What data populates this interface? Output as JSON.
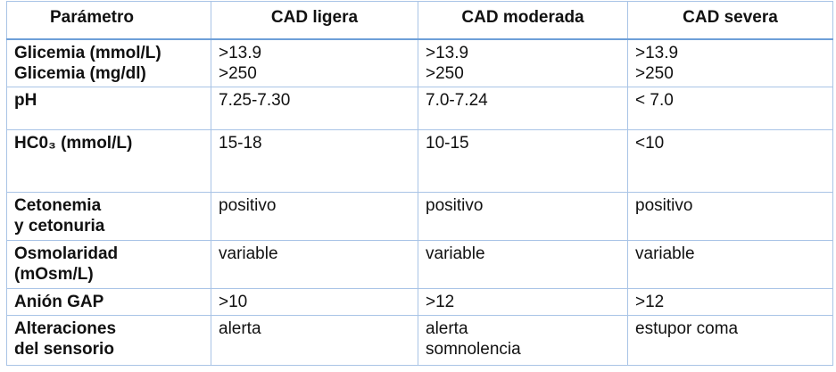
{
  "table": {
    "headers": [
      "Parámetro",
      "CAD ligera",
      "CAD moderada",
      "CAD severa"
    ],
    "rows": [
      {
        "label": [
          "Glicemia (mmol/L)",
          "Glicemia (mg/dl)"
        ],
        "values": [
          [
            ">13.9",
            ">250"
          ],
          [
            ">13.9",
            ">250"
          ],
          [
            ">13.9",
            ">250"
          ]
        ]
      },
      {
        "label": [
          "pH"
        ],
        "values": [
          [
            "7.25-7.30"
          ],
          [
            "7.0-7.24"
          ],
          [
            "< 7.0"
          ]
        ]
      },
      {
        "label": [
          "HC0₃ (mmol/L)"
        ],
        "values": [
          [
            "15-18"
          ],
          [
            "10-15"
          ],
          [
            "<10"
          ]
        ]
      },
      {
        "label": [
          "Cetonemia",
          "y cetonuria"
        ],
        "values": [
          [
            "positivo"
          ],
          [
            "positivo"
          ],
          [
            "positivo"
          ]
        ]
      },
      {
        "label": [
          "Osmolaridad",
          "(mOsm/L)"
        ],
        "values": [
          [
            "variable"
          ],
          [
            "variable"
          ],
          [
            "variable"
          ]
        ]
      },
      {
        "label": [
          "Anión GAP"
        ],
        "values": [
          [
            ">10"
          ],
          [
            ">12"
          ],
          [
            ">12"
          ]
        ]
      },
      {
        "label": [
          "Alteraciones",
          "del sensorio"
        ],
        "values": [
          [
            "alerta"
          ],
          [
            "alerta",
            "somnolencia"
          ],
          [
            "estupor coma"
          ]
        ]
      }
    ]
  }
}
